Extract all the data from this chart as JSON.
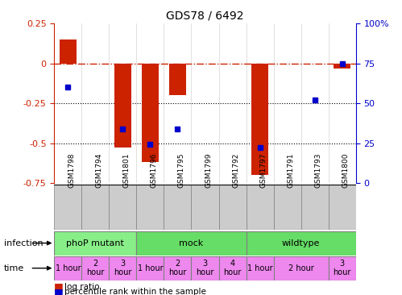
{
  "title": "GDS78 / 6492",
  "samples": [
    "GSM1798",
    "GSM1794",
    "GSM1801",
    "GSM1796",
    "GSM1795",
    "GSM1799",
    "GSM1792",
    "GSM1797",
    "GSM1791",
    "GSM1793",
    "GSM1800"
  ],
  "log_ratio": [
    0.15,
    0.0,
    -0.53,
    -0.62,
    -0.2,
    0.0,
    0.0,
    -0.7,
    0.0,
    0.0,
    -0.03
  ],
  "percentile": [
    60,
    0,
    34,
    24,
    34,
    0,
    0,
    22,
    0,
    52,
    75
  ],
  "has_percentile": [
    true,
    false,
    true,
    true,
    true,
    false,
    false,
    true,
    false,
    true,
    true
  ],
  "ylim_left": [
    -0.75,
    0.25
  ],
  "ylim_right": [
    0,
    100
  ],
  "bar_color": "#CC2200",
  "dot_color": "#0000CC",
  "infection_groups": [
    {
      "label": "phoP mutant",
      "start": 0,
      "end": 3,
      "color": "#88EE88"
    },
    {
      "label": "mock",
      "start": 3,
      "end": 7,
      "color": "#66DD66"
    },
    {
      "label": "wildtype",
      "start": 7,
      "end": 11,
      "color": "#66DD66"
    }
  ],
  "time_cells": [
    {
      "label": "1 hour",
      "start": 0,
      "end": 1
    },
    {
      "label": "2\nhour",
      "start": 1,
      "end": 2
    },
    {
      "label": "3\nhour",
      "start": 2,
      "end": 3
    },
    {
      "label": "1 hour",
      "start": 3,
      "end": 4
    },
    {
      "label": "2\nhour",
      "start": 4,
      "end": 5
    },
    {
      "label": "3\nhour",
      "start": 5,
      "end": 6
    },
    {
      "label": "4\nhour",
      "start": 6,
      "end": 7
    },
    {
      "label": "1 hour",
      "start": 7,
      "end": 8
    },
    {
      "label": "2 hour",
      "start": 8,
      "end": 10
    },
    {
      "label": "3\nhour",
      "start": 10,
      "end": 11
    }
  ],
  "time_color": "#EE88EE",
  "sample_bg": "#CCCCCC",
  "legend_bar_label": "log ratio",
  "legend_dot_label": "percentile rank within the sample",
  "infection_label": "infection",
  "time_label": "time"
}
